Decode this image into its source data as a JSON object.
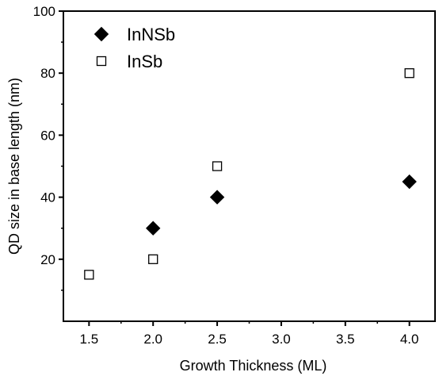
{
  "chart_data": {
    "type": "scatter",
    "title": "",
    "xlabel": "Growth Thickness (ML)",
    "ylabel": "QD size in base length (nm)",
    "xlim": [
      1.3,
      4.2
    ],
    "ylim": [
      0,
      100
    ],
    "xticks": [
      1.5,
      2.0,
      2.5,
      3.0,
      3.5,
      4.0
    ],
    "xtick_labels": [
      "1.5",
      "2.0",
      "2.5",
      "3.0",
      "3.5",
      "4.0"
    ],
    "yticks": [
      20,
      40,
      60,
      80,
      100
    ],
    "ytick_labels": [
      "20",
      "40",
      "60",
      "80",
      "100"
    ],
    "grid": false,
    "legend_position": "top-left",
    "series": [
      {
        "name": "InNSb",
        "marker": "filled-diamond",
        "color": "#000000",
        "x": [
          2.0,
          2.5,
          4.0
        ],
        "y": [
          30,
          40,
          45
        ]
      },
      {
        "name": "InSb",
        "marker": "open-square",
        "color": "#000000",
        "x": [
          1.5,
          2.0,
          2.5,
          4.0
        ],
        "y": [
          15,
          20,
          50,
          80
        ]
      }
    ]
  }
}
